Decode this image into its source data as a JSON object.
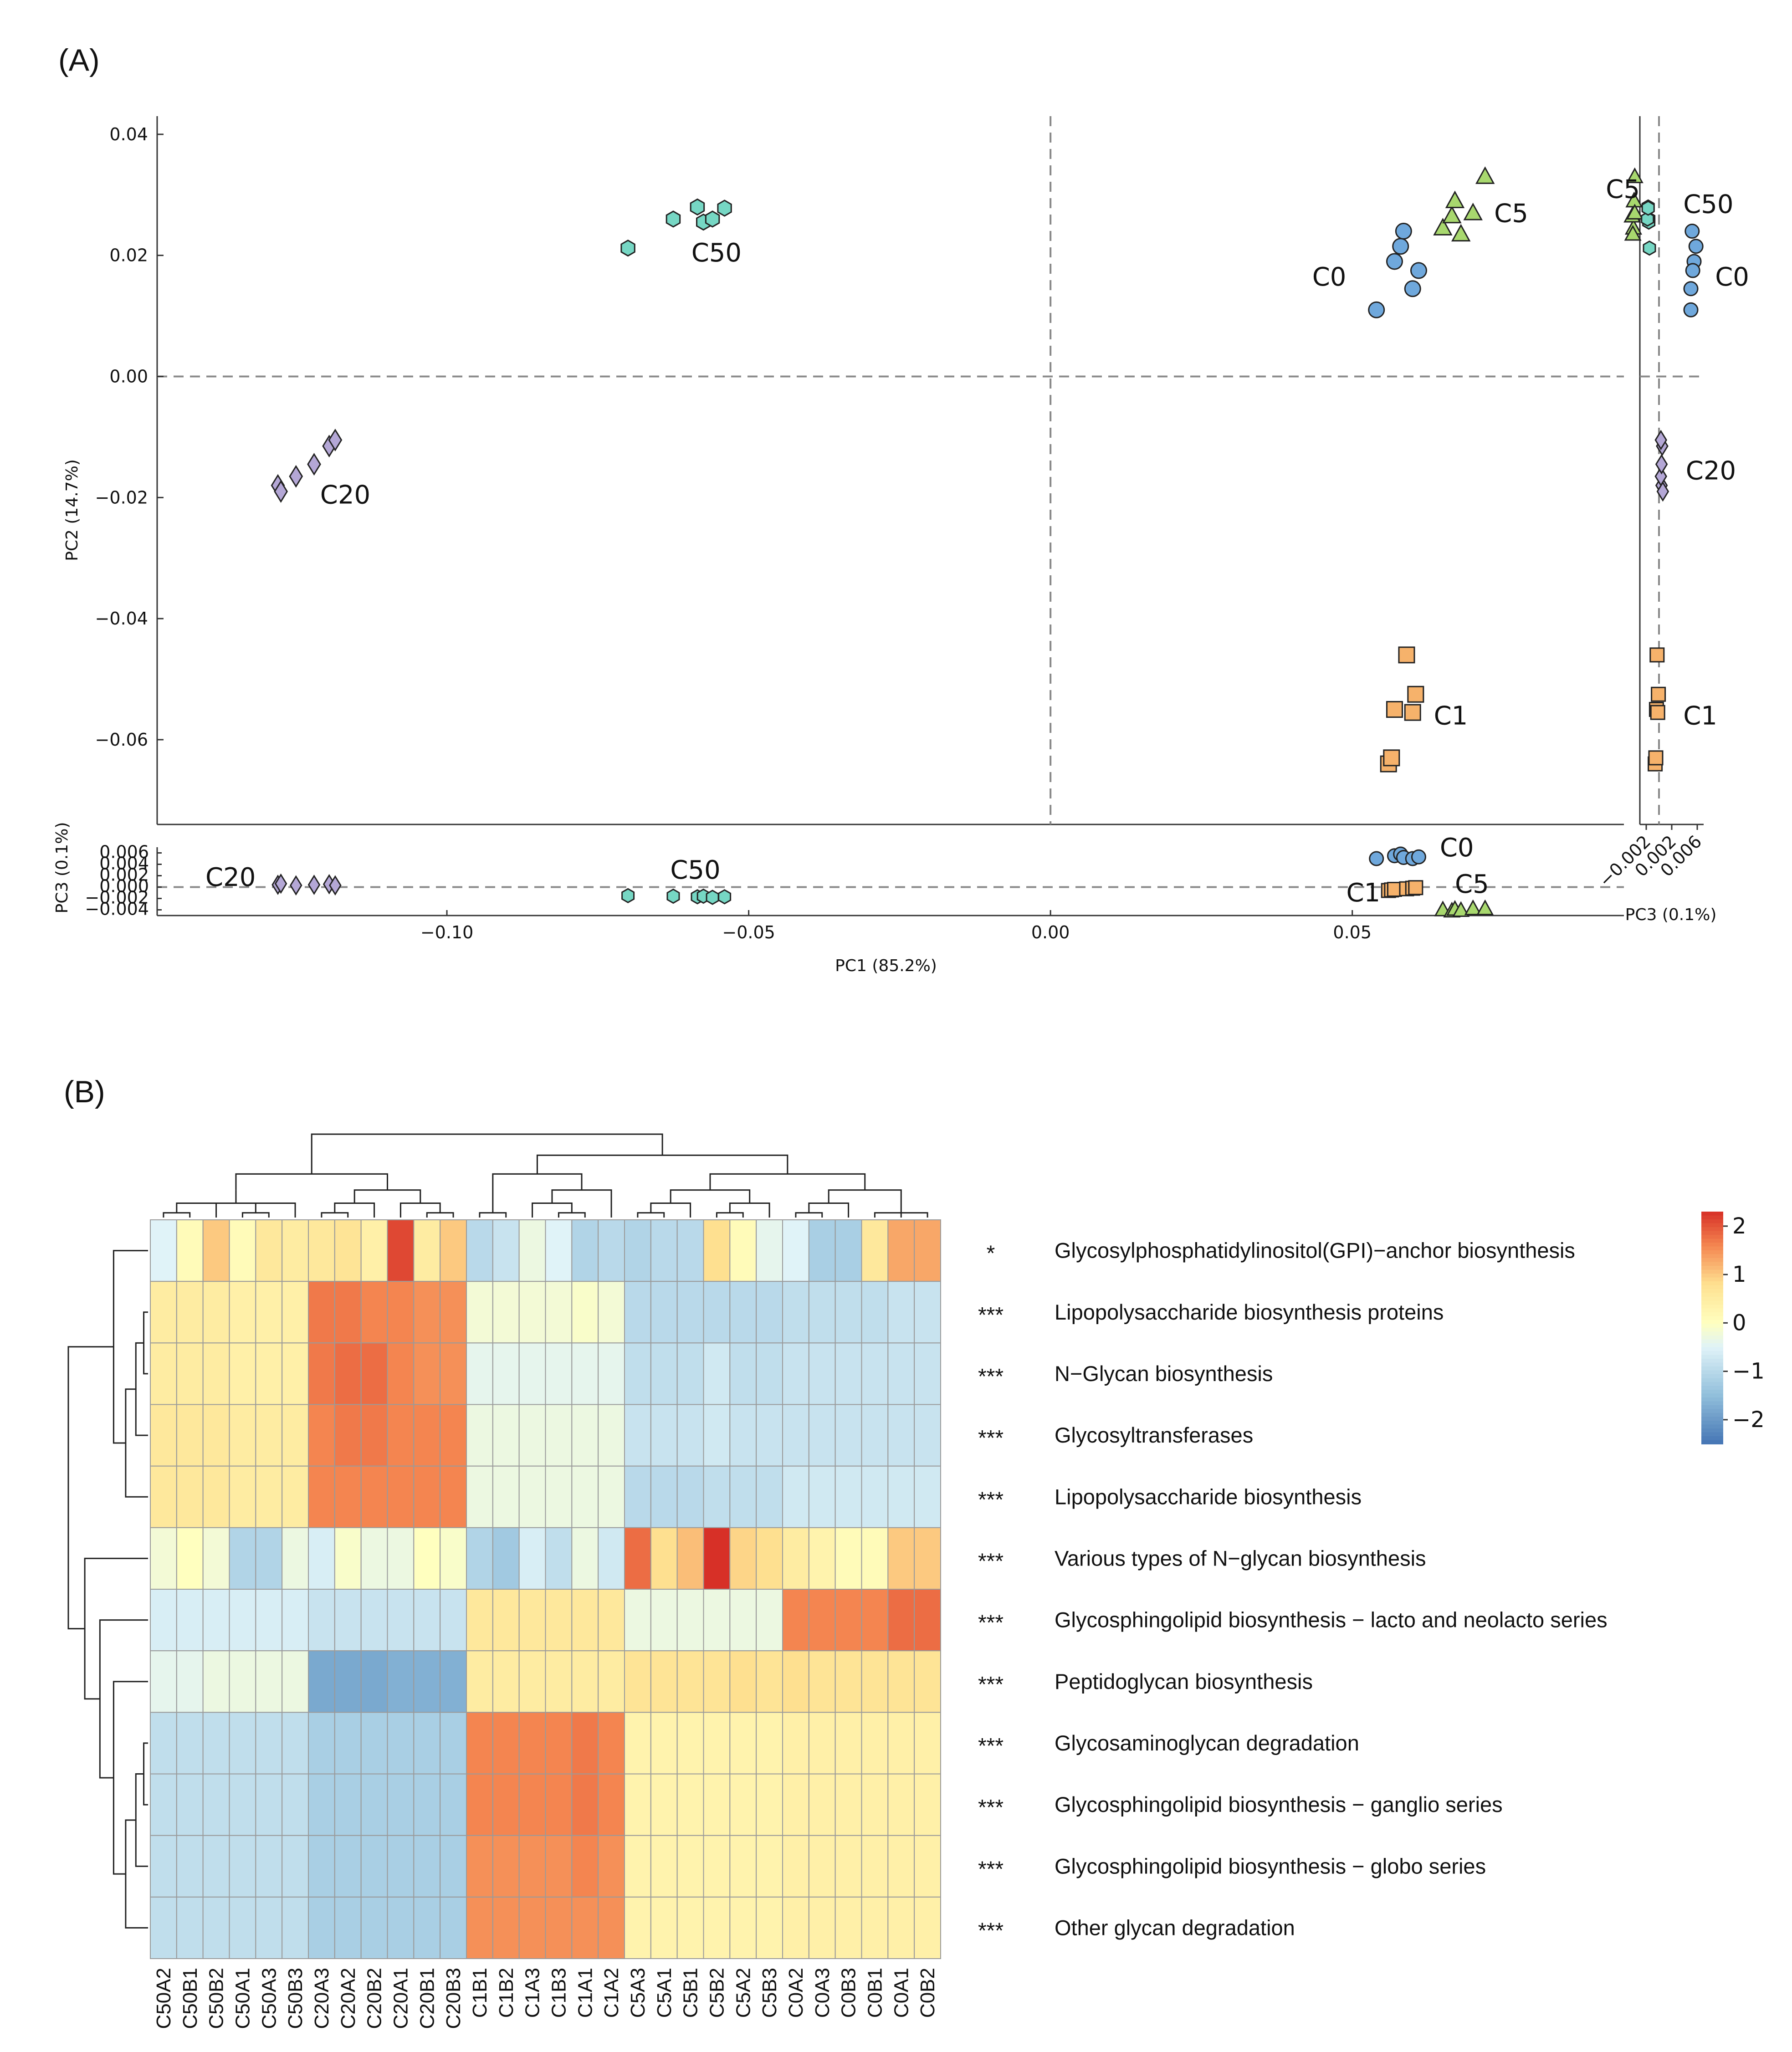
{
  "panels": {
    "a_label": "(A)",
    "b_label": "(B)"
  },
  "colors": {
    "C0": "#6fa8dc",
    "C1": "#f6b26b",
    "C5": "#a8d86e",
    "C20": "#b4a7d6",
    "C50": "#76d7c4",
    "heat_low": "#4575b4",
    "heat_mid": "#ffffbf",
    "heat_high": "#d73027"
  },
  "chart_data": [
    {
      "type": "scatter",
      "title": "",
      "xlabel": "PC1 (85.2%)",
      "ylabel": "PC2 (14.7%)",
      "ylabel_bottom": "PC3 (0.1%)",
      "xlabel_side": "PC3 (0.1%)",
      "xlim": [
        -0.148,
        0.095
      ],
      "ylim": [
        -0.074,
        0.043
      ],
      "pc3_lim": [
        -0.005,
        0.007
      ],
      "x_ticks": [
        "−0.10",
        "−0.05",
        "0.00",
        "0.05"
      ],
      "x_tick_values": [
        -0.1,
        -0.05,
        0.0,
        0.05
      ],
      "y_ticks": [
        "0.04",
        "0.02",
        "0.00",
        "−0.02",
        "−0.04",
        "−0.06"
      ],
      "y_tick_values": [
        0.04,
        0.02,
        0.0,
        -0.02,
        -0.04,
        -0.06
      ],
      "pc3_ticks": [
        "0.006",
        "0.004",
        "0.002",
        "0.000",
        "−0.002",
        "−0.004"
      ],
      "pc3_tick_values": [
        0.006,
        0.004,
        0.002,
        0.0,
        -0.002,
        -0.004
      ],
      "side_ticks": [
        "−0.002",
        "0.002",
        "0.006"
      ],
      "side_tick_values": [
        -0.002,
        0.002,
        0.006
      ],
      "side_xlim": [
        -0.003,
        0.007
      ],
      "grid": false,
      "series": [
        {
          "name": "C0",
          "marker": "circle",
          "pc1": [
            0.054,
            0.057,
            0.058,
            0.0585,
            0.06,
            0.061
          ],
          "pc2": [
            0.011,
            0.019,
            0.0215,
            0.024,
            0.0145,
            0.0175
          ],
          "pc3": [
            0.005,
            0.0055,
            0.0058,
            0.0052,
            0.005,
            0.0053
          ]
        },
        {
          "name": "C1",
          "marker": "square",
          "pc1": [
            0.056,
            0.0565,
            0.057,
            0.059,
            0.06,
            0.0605
          ],
          "pc2": [
            -0.064,
            -0.063,
            -0.055,
            -0.046,
            -0.0555,
            -0.0525
          ],
          "pc3": [
            -0.0006,
            -0.0005,
            -0.0004,
            -0.0003,
            -0.0002,
            -0.0001
          ]
        },
        {
          "name": "C5",
          "marker": "triangle",
          "pc1": [
            0.065,
            0.0665,
            0.067,
            0.068,
            0.07,
            0.072
          ],
          "pc2": [
            0.0245,
            0.0265,
            0.029,
            0.0235,
            0.027,
            0.033
          ],
          "pc3": [
            -0.004,
            -0.0042,
            -0.0039,
            -0.0041,
            -0.0038,
            -0.0038
          ]
        },
        {
          "name": "C20",
          "marker": "diamond",
          "pc1": [
            -0.128,
            -0.1275,
            -0.125,
            -0.122,
            -0.1195,
            -0.1185
          ],
          "pc2": [
            -0.018,
            -0.019,
            -0.0165,
            -0.0145,
            -0.0115,
            -0.0105
          ],
          "pc3": [
            0.0004,
            0.0006,
            0.0003,
            0.0004,
            0.0005,
            0.0003
          ]
        },
        {
          "name": "C50",
          "marker": "hexagon",
          "pc1": [
            -0.07,
            -0.0625,
            -0.0585,
            -0.0575,
            -0.056,
            -0.054
          ],
          "pc2": [
            0.0212,
            0.026,
            0.028,
            0.0255,
            0.026,
            0.0278
          ],
          "pc3": [
            -0.0015,
            -0.0016,
            -0.0017,
            -0.0016,
            -0.0018,
            -0.0017
          ]
        }
      ],
      "main_group_labels": [
        {
          "name": "C0",
          "x": 0.049,
          "y": 0.015
        },
        {
          "name": "C5",
          "x": 0.0735,
          "y": 0.0255
        },
        {
          "name": "C50",
          "x": -0.0595,
          "y": 0.019
        },
        {
          "name": "C20",
          "x": -0.121,
          "y": -0.021
        },
        {
          "name": "C1",
          "x": 0.0635,
          "y": -0.0575
        }
      ],
      "bottom_group_labels": [
        {
          "name": "C20",
          "x": -0.14,
          "y": 0.0002
        },
        {
          "name": "C50",
          "x": -0.063,
          "y": 0.0015
        },
        {
          "name": "C0",
          "x": 0.0645,
          "y": 0.0054
        },
        {
          "name": "C1",
          "x": 0.049,
          "y": -0.0025
        },
        {
          "name": "C5",
          "x": 0.067,
          "y": -0.001
        }
      ],
      "side_group_labels": [
        {
          "name": "C5",
          "x": -0.003,
          "y": 0.0295
        },
        {
          "name": "C50",
          "x": 0.0038,
          "y": 0.027
        },
        {
          "name": "C0",
          "x": 0.0088,
          "y": 0.015
        },
        {
          "name": "C20",
          "x": 0.0042,
          "y": -0.017
        },
        {
          "name": "C1",
          "x": 0.0038,
          "y": -0.0575
        }
      ]
    },
    {
      "type": "heatmap",
      "title": "",
      "columns": [
        "C50A2",
        "C50B1",
        "C50B2",
        "C50A1",
        "C50A3",
        "C50B3",
        "C20A3",
        "C20A2",
        "C20B2",
        "C20A1",
        "C20B1",
        "C20B3",
        "C1B1",
        "C1B2",
        "C1A3",
        "C1B3",
        "C1A1",
        "C1A2",
        "C5A3",
        "C5A1",
        "C5B1",
        "C5B2",
        "C5A2",
        "C5B3",
        "C0A2",
        "C0A3",
        "C0B3",
        "C0B1",
        "C0A1",
        "C0B2"
      ],
      "rows": [
        {
          "sig": "*",
          "label": "Glycosylphosphatidylinositol(GPI)−anchor biosynthesis",
          "values": [
            -0.5,
            0.1,
            1.0,
            0.1,
            0.6,
            0.5,
            0.6,
            0.7,
            0.4,
            2.1,
            0.5,
            1.0,
            -1.0,
            -0.8,
            -0.3,
            -0.5,
            -1.1,
            -1.0,
            -1.1,
            -1.0,
            -1.0,
            0.8,
            0.1,
            -0.4,
            -0.5,
            -1.2,
            -1.2,
            0.6,
            1.3,
            1.3
          ]
        },
        {
          "sig": "***",
          "label": "Lipopolysaccharide biosynthesis proteins",
          "values": [
            0.5,
            0.5,
            0.5,
            0.4,
            0.4,
            0.4,
            1.7,
            1.7,
            1.6,
            1.6,
            1.5,
            1.5,
            -0.2,
            -0.2,
            -0.2,
            -0.2,
            -0.1,
            -0.2,
            -1.0,
            -1.0,
            -1.0,
            -1.0,
            -1.0,
            -1.0,
            -0.9,
            -0.9,
            -0.9,
            -0.9,
            -0.8,
            -0.8
          ]
        },
        {
          "sig": "***",
          "label": "N−Glycan biosynthesis",
          "values": [
            0.5,
            0.5,
            0.5,
            0.4,
            0.4,
            0.4,
            1.7,
            1.8,
            1.8,
            1.6,
            1.5,
            1.5,
            -0.4,
            -0.4,
            -0.4,
            -0.4,
            -0.4,
            -0.4,
            -0.9,
            -0.9,
            -0.9,
            -0.7,
            -0.9,
            -0.9,
            -0.8,
            -0.8,
            -0.8,
            -0.8,
            -0.8,
            -0.8
          ]
        },
        {
          "sig": "***",
          "label": "Glycosyltransferases",
          "values": [
            0.6,
            0.6,
            0.6,
            0.5,
            0.5,
            0.5,
            1.6,
            1.7,
            1.7,
            1.6,
            1.6,
            1.6,
            -0.3,
            -0.3,
            -0.3,
            -0.3,
            -0.3,
            -0.3,
            -0.8,
            -0.8,
            -0.8,
            -0.7,
            -0.8,
            -0.8,
            -0.8,
            -0.8,
            -0.8,
            -0.8,
            -0.8,
            -0.8
          ]
        },
        {
          "sig": "***",
          "label": "Lipopolysaccharide biosynthesis",
          "values": [
            0.6,
            0.6,
            0.6,
            0.5,
            0.5,
            0.5,
            1.6,
            1.6,
            1.6,
            1.6,
            1.6,
            1.6,
            -0.3,
            -0.3,
            -0.3,
            -0.3,
            -0.3,
            -0.3,
            -1.0,
            -1.0,
            -1.0,
            -0.9,
            -0.9,
            -0.9,
            -0.7,
            -0.7,
            -0.7,
            -0.7,
            -0.7,
            -0.7
          ]
        },
        {
          "sig": "***",
          "label": "Various types of N−glycan biosynthesis",
          "values": [
            -0.2,
            0.0,
            -0.2,
            -1.1,
            -1.1,
            -0.3,
            -0.6,
            -0.1,
            -0.3,
            -0.3,
            0.0,
            -0.1,
            -1.1,
            -1.3,
            -0.6,
            -0.9,
            -0.3,
            -0.7,
            1.8,
            0.8,
            1.1,
            2.3,
            0.9,
            0.8,
            0.5,
            0.3,
            0.1,
            0.1,
            1.0,
            1.0
          ]
        },
        {
          "sig": "***",
          "label": "Glycosphingolipid biosynthesis − lacto and neolacto series",
          "values": [
            -0.6,
            -0.6,
            -0.6,
            -0.6,
            -0.6,
            -0.6,
            -0.8,
            -0.8,
            -0.8,
            -0.8,
            -0.8,
            -0.8,
            0.6,
            0.6,
            0.6,
            0.6,
            0.6,
            0.6,
            -0.3,
            -0.3,
            -0.3,
            -0.3,
            -0.3,
            -0.3,
            1.6,
            1.6,
            1.6,
            1.6,
            1.8,
            1.8
          ]
        },
        {
          "sig": "***",
          "label": "Peptidoglycan biosynthesis",
          "values": [
            -0.4,
            -0.4,
            -0.3,
            -0.3,
            -0.3,
            -0.3,
            -1.8,
            -1.8,
            -1.8,
            -1.7,
            -1.7,
            -1.7,
            0.5,
            0.5,
            0.5,
            0.5,
            0.5,
            0.5,
            0.7,
            0.7,
            0.7,
            0.7,
            0.8,
            0.7,
            0.8,
            0.7,
            0.7,
            0.7,
            0.7,
            0.7
          ]
        },
        {
          "sig": "***",
          "label": "Glycosaminoglycan degradation",
          "values": [
            -0.9,
            -0.9,
            -0.9,
            -0.9,
            -0.9,
            -0.9,
            -1.2,
            -1.2,
            -1.2,
            -1.2,
            -1.2,
            -1.2,
            1.6,
            1.6,
            1.6,
            1.6,
            1.7,
            1.6,
            0.3,
            0.3,
            0.3,
            0.3,
            0.3,
            0.3,
            0.4,
            0.4,
            0.4,
            0.4,
            0.4,
            0.4
          ]
        },
        {
          "sig": "***",
          "label": "Glycosphingolipid biosynthesis − ganglio series",
          "values": [
            -0.9,
            -0.9,
            -0.9,
            -0.9,
            -0.9,
            -0.9,
            -1.2,
            -1.2,
            -1.2,
            -1.2,
            -1.2,
            -1.2,
            1.6,
            1.6,
            1.6,
            1.6,
            1.7,
            1.6,
            0.3,
            0.3,
            0.3,
            0.3,
            0.3,
            0.3,
            0.4,
            0.4,
            0.4,
            0.4,
            0.4,
            0.4
          ]
        },
        {
          "sig": "***",
          "label": "Glycosphingolipid biosynthesis − globo series",
          "values": [
            -0.9,
            -0.9,
            -0.9,
            -0.9,
            -0.9,
            -0.9,
            -1.2,
            -1.2,
            -1.2,
            -1.2,
            -1.2,
            -1.2,
            1.5,
            1.5,
            1.5,
            1.5,
            1.6,
            1.5,
            0.3,
            0.3,
            0.3,
            0.3,
            0.3,
            0.3,
            0.4,
            0.4,
            0.4,
            0.4,
            0.4,
            0.4
          ]
        },
        {
          "sig": "***",
          "label": "Other glycan degradation",
          "values": [
            -0.9,
            -0.9,
            -0.9,
            -0.9,
            -0.9,
            -0.9,
            -1.2,
            -1.2,
            -1.2,
            -1.2,
            -1.2,
            -1.2,
            1.5,
            1.5,
            1.5,
            1.5,
            1.5,
            1.5,
            0.3,
            0.3,
            0.3,
            0.3,
            0.3,
            0.3,
            0.4,
            0.4,
            0.4,
            0.4,
            0.4,
            0.4
          ]
        }
      ],
      "colorbar": {
        "min": -2.5,
        "max": 2.3,
        "ticks": [
          "2",
          "1",
          "0",
          "−1",
          "−2"
        ],
        "tick_values": [
          2,
          1,
          0,
          -1,
          -2
        ]
      },
      "col_dendrogram": [
        [
          0,
          1
        ],
        [
          3,
          4
        ],
        [
          30,
          5
        ],
        [
          2,
          31
        ],
        [
          32,
          33
        ],
        [
          6,
          7
        ],
        [
          8,
          35
        ],
        [
          10,
          11
        ],
        [
          9,
          37
        ],
        [
          36,
          38
        ],
        [
          34,
          39
        ],
        [
          12,
          13
        ],
        [
          15,
          16
        ],
        [
          14,
          42
        ],
        [
          43,
          17
        ],
        [
          41,
          44
        ],
        [
          18,
          19
        ],
        [
          46,
          20
        ],
        [
          21,
          22
        ],
        [
          48,
          23
        ],
        [
          47,
          49
        ],
        [
          24,
          25
        ],
        [
          26,
          51
        ],
        [
          27,
          29
        ],
        [
          53,
          28
        ],
        [
          52,
          54
        ],
        [
          50,
          55
        ],
        [
          45,
          56
        ],
        [
          40,
          57
        ]
      ],
      "row_dendrogram": [
        [
          1,
          2
        ],
        [
          12,
          3
        ],
        [
          13,
          4
        ],
        [
          8,
          9
        ],
        [
          15,
          10
        ],
        [
          16,
          11
        ],
        [
          17,
          7
        ],
        [
          18,
          6
        ],
        [
          5,
          19
        ],
        [
          0,
          14
        ],
        [
          21,
          20
        ]
      ]
    }
  ]
}
